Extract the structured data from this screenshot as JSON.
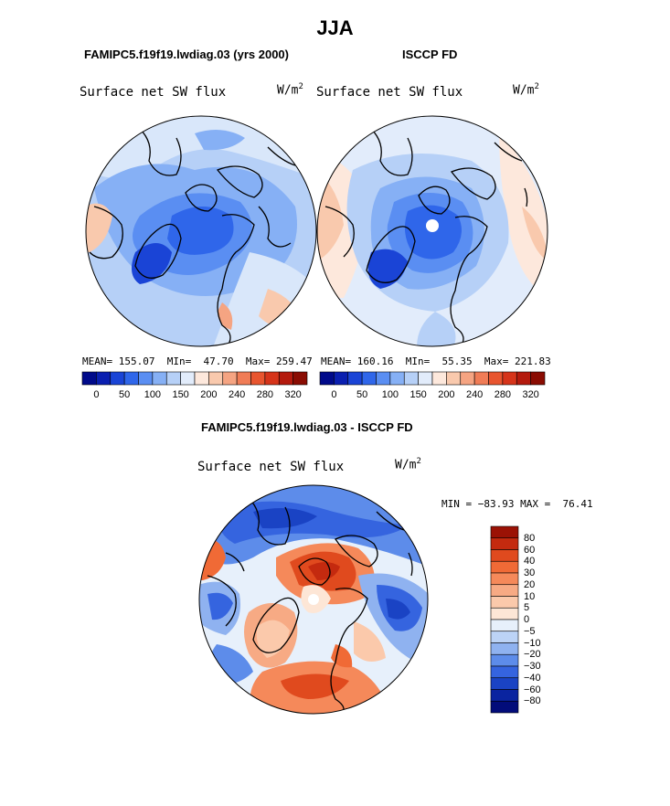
{
  "title": "JJA",
  "left_panel": {
    "title": "FAMIPC5.f19f19.lwdiag.03 (yrs 2000)",
    "map_label": "Surface net SW flux",
    "units": "W/m",
    "units_exp": "2",
    "stats": {
      "mean_label": "MEAN=",
      "mean": "155.07",
      "min_label": "MIn=",
      "min": "47.70",
      "max_label": "Max=",
      "max": "259.47"
    }
  },
  "right_panel": {
    "title": "ISCCP FD",
    "map_label": "Surface net SW flux",
    "units": "W/m",
    "units_exp": "2",
    "stats": {
      "mean_label": "MEAN=",
      "mean": "160.16",
      "min_label": "MIn=",
      "min": "55.35",
      "max_label": "Max=",
      "max": "221.83"
    }
  },
  "abs_colorbar": {
    "tick_labels": [
      "0",
      "50",
      "100",
      "150",
      "200",
      "240",
      "280",
      "320"
    ],
    "colors": [
      "#000a8a",
      "#0a1fb0",
      "#1a44d6",
      "#2f66ea",
      "#5a8ef2",
      "#86b0f5",
      "#b6d0f7",
      "#e2ecfb",
      "#fde8dc",
      "#f9c9ad",
      "#f5a482",
      "#f07c56",
      "#e8552f",
      "#d6341a",
      "#b41a0d",
      "#8a0c02"
    ]
  },
  "diff_panel": {
    "title": "FAMIPC5.f19f19.lwdiag.03 - ISCCP FD",
    "map_label": "Surface net SW flux",
    "units": "W/m",
    "units_exp": "2",
    "minmax": {
      "min_label": "MIN =",
      "min": "−83.93",
      "max_label": "MAX =",
      "max": "76.41"
    }
  },
  "diff_colorbar": {
    "tick_labels": [
      "80",
      "60",
      "40",
      "30",
      "20",
      "10",
      "5",
      "0",
      "−5",
      "−10",
      "−20",
      "−30",
      "−40",
      "−60",
      "−80"
    ],
    "colors": [
      "#9b1205",
      "#c42a0f",
      "#e04a1e",
      "#f06a36",
      "#f5895a",
      "#f7aa84",
      "#fbc9ab",
      "#fde6d6",
      "#e7f0fb",
      "#bcd3f6",
      "#8fb2f0",
      "#5d8cea",
      "#3564df",
      "#1a43c4",
      "#0a24a0",
      "#020c7a"
    ]
  }
}
